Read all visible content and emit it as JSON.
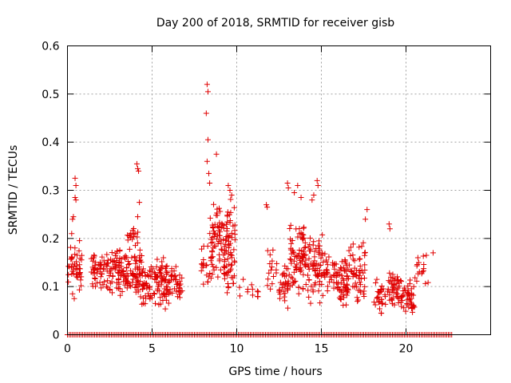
{
  "chart_data": {
    "type": "scatter",
    "title": "Day 200 of 2018, SRMTID for receiver gisb",
    "xlabel": "GPS time / hours",
    "ylabel": "SRMTID / TECUs",
    "xlim": [
      0,
      25
    ],
    "ylim": [
      0,
      0.6
    ],
    "xticks": [
      0,
      5,
      10,
      15,
      20
    ],
    "xtick_labels": [
      "0",
      "5",
      "10",
      "15",
      "20"
    ],
    "yticks": [
      0,
      0.1,
      0.2,
      0.3,
      0.4,
      0.5,
      0.6
    ],
    "ytick_labels": [
      "0",
      "0.1",
      "0.2",
      "0.3",
      "0.4",
      "0.5",
      "0.6"
    ],
    "grid": true,
    "marker": "+",
    "color": "#e00000",
    "zero_baseline_x_range": [
      0.0,
      22.8
    ],
    "clusters": [
      {
        "x_range": [
          0.05,
          0.85
        ],
        "y_range": [
          0.07,
          0.21
        ],
        "count": 45
      },
      {
        "x_range": [
          1.3,
          2.2
        ],
        "y_range": [
          0.09,
          0.18
        ],
        "count": 45
      },
      {
        "x_range": [
          2.3,
          3.1
        ],
        "y_range": [
          0.08,
          0.2
        ],
        "count": 55
      },
      {
        "x_range": [
          3.0,
          4.4
        ],
        "y_range": [
          0.07,
          0.18
        ],
        "count": 95
      },
      {
        "x_range": [
          3.5,
          4.2
        ],
        "y_range": [
          0.18,
          0.24
        ],
        "count": 16
      },
      {
        "x_range": [
          4.4,
          5.1
        ],
        "y_range": [
          0.06,
          0.15
        ],
        "count": 40
      },
      {
        "x_range": [
          5.1,
          5.9
        ],
        "y_range": [
          0.05,
          0.17
        ],
        "count": 65
      },
      {
        "x_range": [
          5.9,
          6.8
        ],
        "y_range": [
          0.06,
          0.15
        ],
        "count": 45
      },
      {
        "x_range": [
          7.9,
          8.6
        ],
        "y_range": [
          0.1,
          0.2
        ],
        "count": 26
      },
      {
        "x_range": [
          8.4,
          9.9
        ],
        "y_range": [
          0.11,
          0.29
        ],
        "count": 105
      },
      {
        "x_range": [
          9.2,
          9.9
        ],
        "y_range": [
          0.08,
          0.18
        ],
        "count": 26
      },
      {
        "x_range": [
          10.0,
          11.3
        ],
        "y_range": [
          0.07,
          0.12
        ],
        "count": 12
      },
      {
        "x_range": [
          11.8,
          12.4
        ],
        "y_range": [
          0.08,
          0.19
        ],
        "count": 16
      },
      {
        "x_range": [
          12.5,
          13.1
        ],
        "y_range": [
          0.05,
          0.15
        ],
        "count": 32
      },
      {
        "x_range": [
          13.1,
          14.2
        ],
        "y_range": [
          0.08,
          0.24
        ],
        "count": 85
      },
      {
        "x_range": [
          14.2,
          15.1
        ],
        "y_range": [
          0.06,
          0.22
        ],
        "count": 65
      },
      {
        "x_range": [
          15.1,
          15.9
        ],
        "y_range": [
          0.08,
          0.17
        ],
        "count": 38
      },
      {
        "x_range": [
          15.9,
          16.6
        ],
        "y_range": [
          0.05,
          0.16
        ],
        "count": 55
      },
      {
        "x_range": [
          16.6,
          17.6
        ],
        "y_range": [
          0.05,
          0.2
        ],
        "count": 55
      },
      {
        "x_range": [
          18.1,
          18.8
        ],
        "y_range": [
          0.04,
          0.12
        ],
        "count": 30
      },
      {
        "x_range": [
          18.9,
          19.7
        ],
        "y_range": [
          0.05,
          0.14
        ],
        "count": 45
      },
      {
        "x_range": [
          19.7,
          20.5
        ],
        "y_range": [
          0.04,
          0.12
        ],
        "count": 45
      },
      {
        "x_range": [
          20.5,
          21.4
        ],
        "y_range": [
          0.09,
          0.17
        ],
        "count": 16
      }
    ],
    "outliers": [
      [
        0.45,
        0.325
      ],
      [
        0.5,
        0.31
      ],
      [
        0.45,
        0.285
      ],
      [
        0.5,
        0.28
      ],
      [
        0.35,
        0.245
      ],
      [
        0.3,
        0.24
      ],
      [
        0.3,
        0.085
      ],
      [
        0.4,
        0.075
      ],
      [
        0.25,
        0.21
      ],
      [
        4.1,
        0.355
      ],
      [
        4.15,
        0.345
      ],
      [
        4.2,
        0.34
      ],
      [
        4.25,
        0.275
      ],
      [
        4.15,
        0.245
      ],
      [
        8.25,
        0.52
      ],
      [
        8.3,
        0.505
      ],
      [
        8.2,
        0.46
      ],
      [
        8.3,
        0.405
      ],
      [
        8.25,
        0.36
      ],
      [
        8.35,
        0.335
      ],
      [
        8.4,
        0.315
      ],
      [
        8.8,
        0.375
      ],
      [
        9.5,
        0.31
      ],
      [
        9.6,
        0.3
      ],
      [
        9.7,
        0.29
      ],
      [
        11.75,
        0.27
      ],
      [
        11.8,
        0.265
      ],
      [
        13.0,
        0.315
      ],
      [
        13.05,
        0.305
      ],
      [
        13.6,
        0.31
      ],
      [
        13.4,
        0.295
      ],
      [
        13.8,
        0.285
      ],
      [
        14.75,
        0.32
      ],
      [
        14.8,
        0.31
      ],
      [
        14.55,
        0.29
      ],
      [
        14.45,
        0.28
      ],
      [
        17.7,
        0.26
      ],
      [
        17.6,
        0.24
      ],
      [
        19.0,
        0.23
      ],
      [
        19.05,
        0.22
      ],
      [
        21.2,
        0.165
      ],
      [
        21.6,
        0.17
      ]
    ]
  }
}
